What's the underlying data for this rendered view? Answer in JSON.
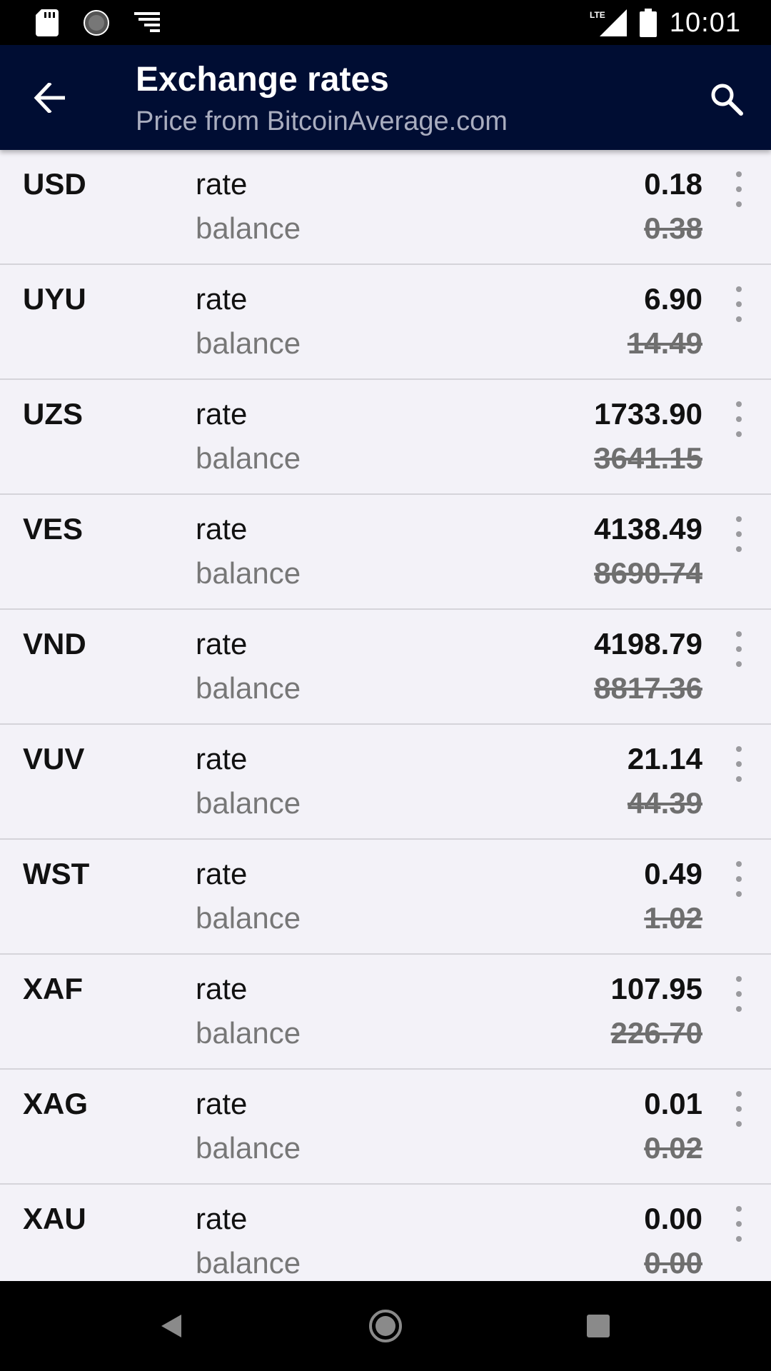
{
  "status_bar": {
    "time": "10:01",
    "network": "LTE",
    "left_icons": [
      "sd-card-icon",
      "loading-icon",
      "notification-list-icon"
    ]
  },
  "app_bar": {
    "title": "Exchange rates",
    "subtitle": "Price from BitcoinAverage.com"
  },
  "list": {
    "rate_label": "rate",
    "balance_label": "balance",
    "rows": [
      {
        "code": "USD",
        "rate": "0.18",
        "balance": "0.38"
      },
      {
        "code": "UYU",
        "rate": "6.90",
        "balance": "14.49"
      },
      {
        "code": "UZS",
        "rate": "1733.90",
        "balance": "3641.15"
      },
      {
        "code": "VES",
        "rate": "4138.49",
        "balance": "8690.74"
      },
      {
        "code": "VND",
        "rate": "4198.79",
        "balance": "8817.36"
      },
      {
        "code": "VUV",
        "rate": "21.14",
        "balance": "44.39"
      },
      {
        "code": "WST",
        "rate": "0.49",
        "balance": "1.02"
      },
      {
        "code": "XAF",
        "rate": "107.95",
        "balance": "226.70"
      },
      {
        "code": "XAG",
        "rate": "0.01",
        "balance": "0.02"
      },
      {
        "code": "XAU",
        "rate": "0.00",
        "balance": "0.00"
      }
    ]
  },
  "colors": {
    "app_bar": "#000d33",
    "background": "#f3f2f8",
    "divider": "#d5d4da"
  }
}
